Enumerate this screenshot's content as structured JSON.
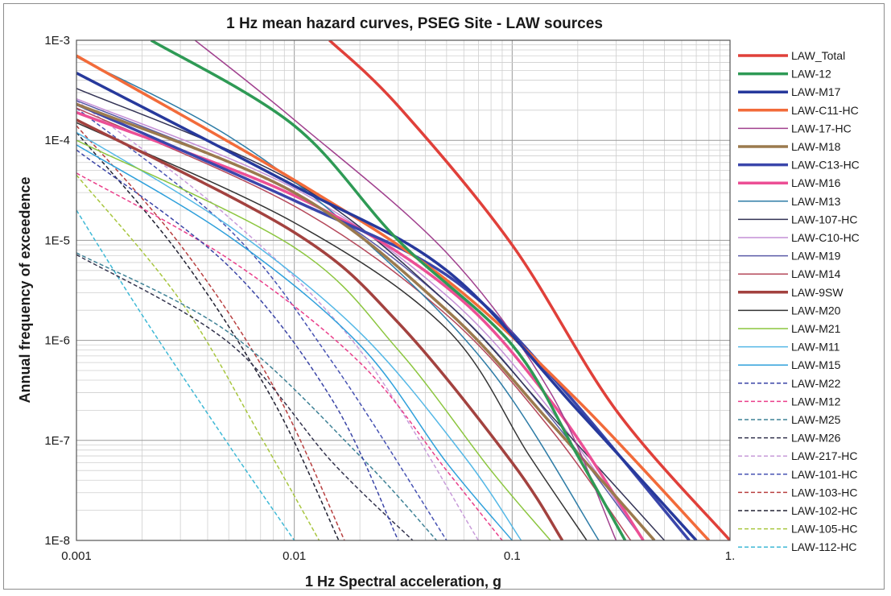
{
  "chart_data": {
    "type": "line",
    "title": "1 Hz mean hazard curves, PSEG Site - LAW sources",
    "xlabel": "1 Hz Spectral acceleration, g",
    "ylabel": "Annual frequency of exceedence",
    "x_scale": "log",
    "y_scale": "log",
    "xlim": [
      0.001,
      1
    ],
    "ylim": [
      1e-08,
      0.001
    ],
    "x_ticks": [
      0.001,
      0.01,
      0.1,
      1
    ],
    "x_tick_labels": [
      "0.001",
      "0.01",
      "0.1",
      "1."
    ],
    "y_ticks": [
      1e-08,
      1e-07,
      1e-06,
      1e-05,
      0.0001,
      0.001
    ],
    "y_tick_labels": [
      "1E-8",
      "1E-7",
      "1E-6",
      "1E-5",
      "1E-4",
      "1E-3"
    ],
    "grid": true,
    "legend_position": "right",
    "series": [
      {
        "name": "LAW_Total",
        "color": "#e0403a",
        "width": 3.5,
        "dash": "solid",
        "x": [
          0.0145,
          0.03,
          0.1,
          0.3,
          1.0
        ],
        "y": [
          0.001,
          0.00022,
          9e-06,
          2e-07,
          1e-08
        ]
      },
      {
        "name": "LAW-12",
        "color": "#2e9a55",
        "width": 3.5,
        "dash": "solid",
        "x": [
          0.0022,
          0.01,
          0.03,
          0.1,
          0.2,
          0.33
        ],
        "y": [
          0.001,
          0.00014,
          1e-05,
          9e-07,
          7e-08,
          1e-08
        ]
      },
      {
        "name": "LAW-M17",
        "color": "#27399c",
        "width": 3.5,
        "dash": "solid",
        "x": [
          0.001,
          0.01,
          0.05,
          0.2,
          0.7
        ],
        "y": [
          0.00047,
          3.5e-05,
          5e-06,
          2e-07,
          1e-08
        ]
      },
      {
        "name": "LAW-C11-HC",
        "color": "#f26b3a",
        "width": 3.5,
        "dash": "solid",
        "x": [
          0.001,
          0.01,
          0.05,
          0.2,
          0.8
        ],
        "y": [
          0.0007,
          4e-05,
          4e-06,
          2.5e-07,
          1e-08
        ]
      },
      {
        "name": "LAW-17-HC",
        "color": "#a0408e",
        "width": 1.5,
        "dash": "solid",
        "x": [
          0.0035,
          0.01,
          0.05,
          0.15,
          0.3
        ],
        "y": [
          0.001,
          0.00016,
          7.5e-06,
          3e-07,
          1e-08
        ]
      },
      {
        "name": "LAW-M18",
        "color": "#9b7a4e",
        "width": 3.5,
        "dash": "solid",
        "x": [
          0.001,
          0.01,
          0.05,
          0.15,
          0.45
        ],
        "y": [
          0.00023,
          3e-05,
          2e-06,
          1.5e-07,
          1e-08
        ]
      },
      {
        "name": "LAW-C13-HC",
        "color": "#3a46ab",
        "width": 3.5,
        "dash": "solid",
        "x": [
          0.001,
          0.01,
          0.05,
          0.15,
          0.65
        ],
        "y": [
          0.00023,
          2.5e-05,
          4.5e-06,
          4.5e-07,
          1e-08
        ]
      },
      {
        "name": "LAW-M16",
        "color": "#ec4f95",
        "width": 3.5,
        "dash": "solid",
        "x": [
          0.001,
          0.01,
          0.05,
          0.15,
          0.4
        ],
        "y": [
          0.00019,
          2.8e-05,
          3.4e-06,
          2.5e-07,
          1e-08
        ]
      },
      {
        "name": "LAW-M13",
        "color": "#2e7ca6",
        "width": 1.5,
        "dash": "solid",
        "x": [
          0.001,
          0.005,
          0.02,
          0.08,
          0.25
        ],
        "y": [
          0.00068,
          0.00011,
          1.1e-05,
          5e-07,
          1e-08
        ]
      },
      {
        "name": "LAW-107-HC",
        "color": "#333355",
        "width": 1.5,
        "dash": "solid",
        "x": [
          0.001,
          0.01,
          0.05,
          0.15,
          0.5
        ],
        "y": [
          0.00033,
          3.8e-05,
          2.4e-06,
          1.8e-07,
          1e-08
        ]
      },
      {
        "name": "LAW-C10-HC",
        "color": "#c48fd6",
        "width": 1.5,
        "dash": "solid",
        "x": [
          0.001,
          0.01,
          0.05,
          0.15,
          0.4
        ],
        "y": [
          0.00026,
          3.3e-05,
          2.8e-06,
          2e-07,
          1e-08
        ]
      },
      {
        "name": "LAW-M19",
        "color": "#5a5aa8",
        "width": 1.5,
        "dash": "solid",
        "x": [
          0.001,
          0.01,
          0.05,
          0.15,
          0.4
        ],
        "y": [
          0.00025,
          3e-05,
          2.4e-06,
          1.7e-07,
          1e-08
        ]
      },
      {
        "name": "LAW-M14",
        "color": "#b5495b",
        "width": 1.5,
        "dash": "solid",
        "x": [
          0.001,
          0.01,
          0.05,
          0.15,
          0.35
        ],
        "y": [
          0.00021,
          2.2e-05,
          1.8e-06,
          1.3e-07,
          1e-08
        ]
      },
      {
        "name": "LAW-9SW",
        "color": "#a3423f",
        "width": 3.5,
        "dash": "solid",
        "x": [
          0.001,
          0.01,
          0.03,
          0.1,
          0.17
        ],
        "y": [
          0.00016,
          1.2e-05,
          1.5e-06,
          6e-08,
          1e-08
        ]
      },
      {
        "name": "LAW-M20",
        "color": "#333333",
        "width": 1.5,
        "dash": "solid",
        "x": [
          0.001,
          0.01,
          0.05,
          0.12,
          0.22
        ],
        "y": [
          0.00015,
          1.5e-05,
          1.3e-06,
          7e-08,
          1e-08
        ]
      },
      {
        "name": "LAW-M21",
        "color": "#8cc63f",
        "width": 1.5,
        "dash": "solid",
        "x": [
          0.001,
          0.01,
          0.03,
          0.08,
          0.15
        ],
        "y": [
          0.0001,
          8.5e-06,
          8e-07,
          5e-08,
          1e-08
        ]
      },
      {
        "name": "LAW-M11",
        "color": "#55b8e6",
        "width": 1.5,
        "dash": "solid",
        "x": [
          0.001,
          0.005,
          0.02,
          0.06,
          0.11
        ],
        "y": [
          0.00012,
          1.4e-05,
          1.2e-06,
          7e-08,
          1e-08
        ]
      },
      {
        "name": "LAW-M15",
        "color": "#2fa0db",
        "width": 1.5,
        "dash": "solid",
        "x": [
          0.001,
          0.005,
          0.02,
          0.05,
          0.1
        ],
        "y": [
          9e-05,
          1.1e-05,
          9e-07,
          6e-08,
          1e-08
        ]
      },
      {
        "name": "LAW-M22",
        "color": "#3a44a6",
        "width": 1.5,
        "dash": "dashed",
        "x": [
          0.001,
          0.005,
          0.015,
          0.03
        ],
        "y": [
          8e-05,
          5.5e-06,
          2.5e-07,
          1e-08
        ]
      },
      {
        "name": "LAW-M12",
        "color": "#ea3f8b",
        "width": 1.5,
        "dash": "dashed",
        "x": [
          0.001,
          0.005,
          0.02,
          0.05,
          0.09
        ],
        "y": [
          4.7e-05,
          6.5e-06,
          6e-07,
          5e-08,
          1e-08
        ]
      },
      {
        "name": "LAW-M25",
        "color": "#3f8296",
        "width": 1.5,
        "dash": "dashed",
        "x": [
          0.001,
          0.005,
          0.02,
          0.045
        ],
        "y": [
          7.5e-06,
          1.2e-06,
          7e-08,
          1e-08
        ]
      },
      {
        "name": "LAW-M26",
        "color": "#33334d",
        "width": 1.5,
        "dash": "dashed",
        "x": [
          0.001,
          0.005,
          0.015,
          0.035
        ],
        "y": [
          7.2e-06,
          9.5e-07,
          6e-08,
          1e-08
        ]
      },
      {
        "name": "LAW-217-HC",
        "color": "#c79bd9",
        "width": 1.5,
        "dash": "dashed",
        "x": [
          0.001,
          0.005,
          0.02,
          0.07
        ],
        "y": [
          0.00025,
          1.7e-05,
          8e-07,
          1e-08
        ]
      },
      {
        "name": "LAW-101-HC",
        "color": "#4753b3",
        "width": 1.5,
        "dash": "dashed",
        "x": [
          0.001,
          0.005,
          0.015,
          0.05
        ],
        "y": [
          0.00021,
          1.3e-05,
          6e-07,
          1e-08
        ]
      },
      {
        "name": "LAW-103-HC",
        "color": "#b84040",
        "width": 1.5,
        "dash": "dashed",
        "x": [
          0.001,
          0.003,
          0.008,
          0.017
        ],
        "y": [
          0.00014,
          9e-06,
          3.5e-07,
          1e-08
        ]
      },
      {
        "name": "LAW-102-HC",
        "color": "#222233",
        "width": 1.5,
        "dash": "dashed",
        "x": [
          0.001,
          0.003,
          0.008,
          0.016
        ],
        "y": [
          0.00012,
          7e-06,
          2.5e-07,
          1e-08
        ]
      },
      {
        "name": "LAW-105-HC",
        "color": "#a8c63f",
        "width": 1.5,
        "dash": "dashed",
        "x": [
          0.001,
          0.003,
          0.007,
          0.013
        ],
        "y": [
          4.5e-05,
          2.5e-06,
          1.1e-07,
          1e-08
        ]
      },
      {
        "name": "LAW-112-HC",
        "color": "#3fb9d6",
        "width": 1.5,
        "dash": "dashed",
        "x": [
          0.001,
          0.002,
          0.005,
          0.01
        ],
        "y": [
          2e-05,
          1.8e-06,
          9e-08,
          1e-08
        ]
      }
    ]
  }
}
